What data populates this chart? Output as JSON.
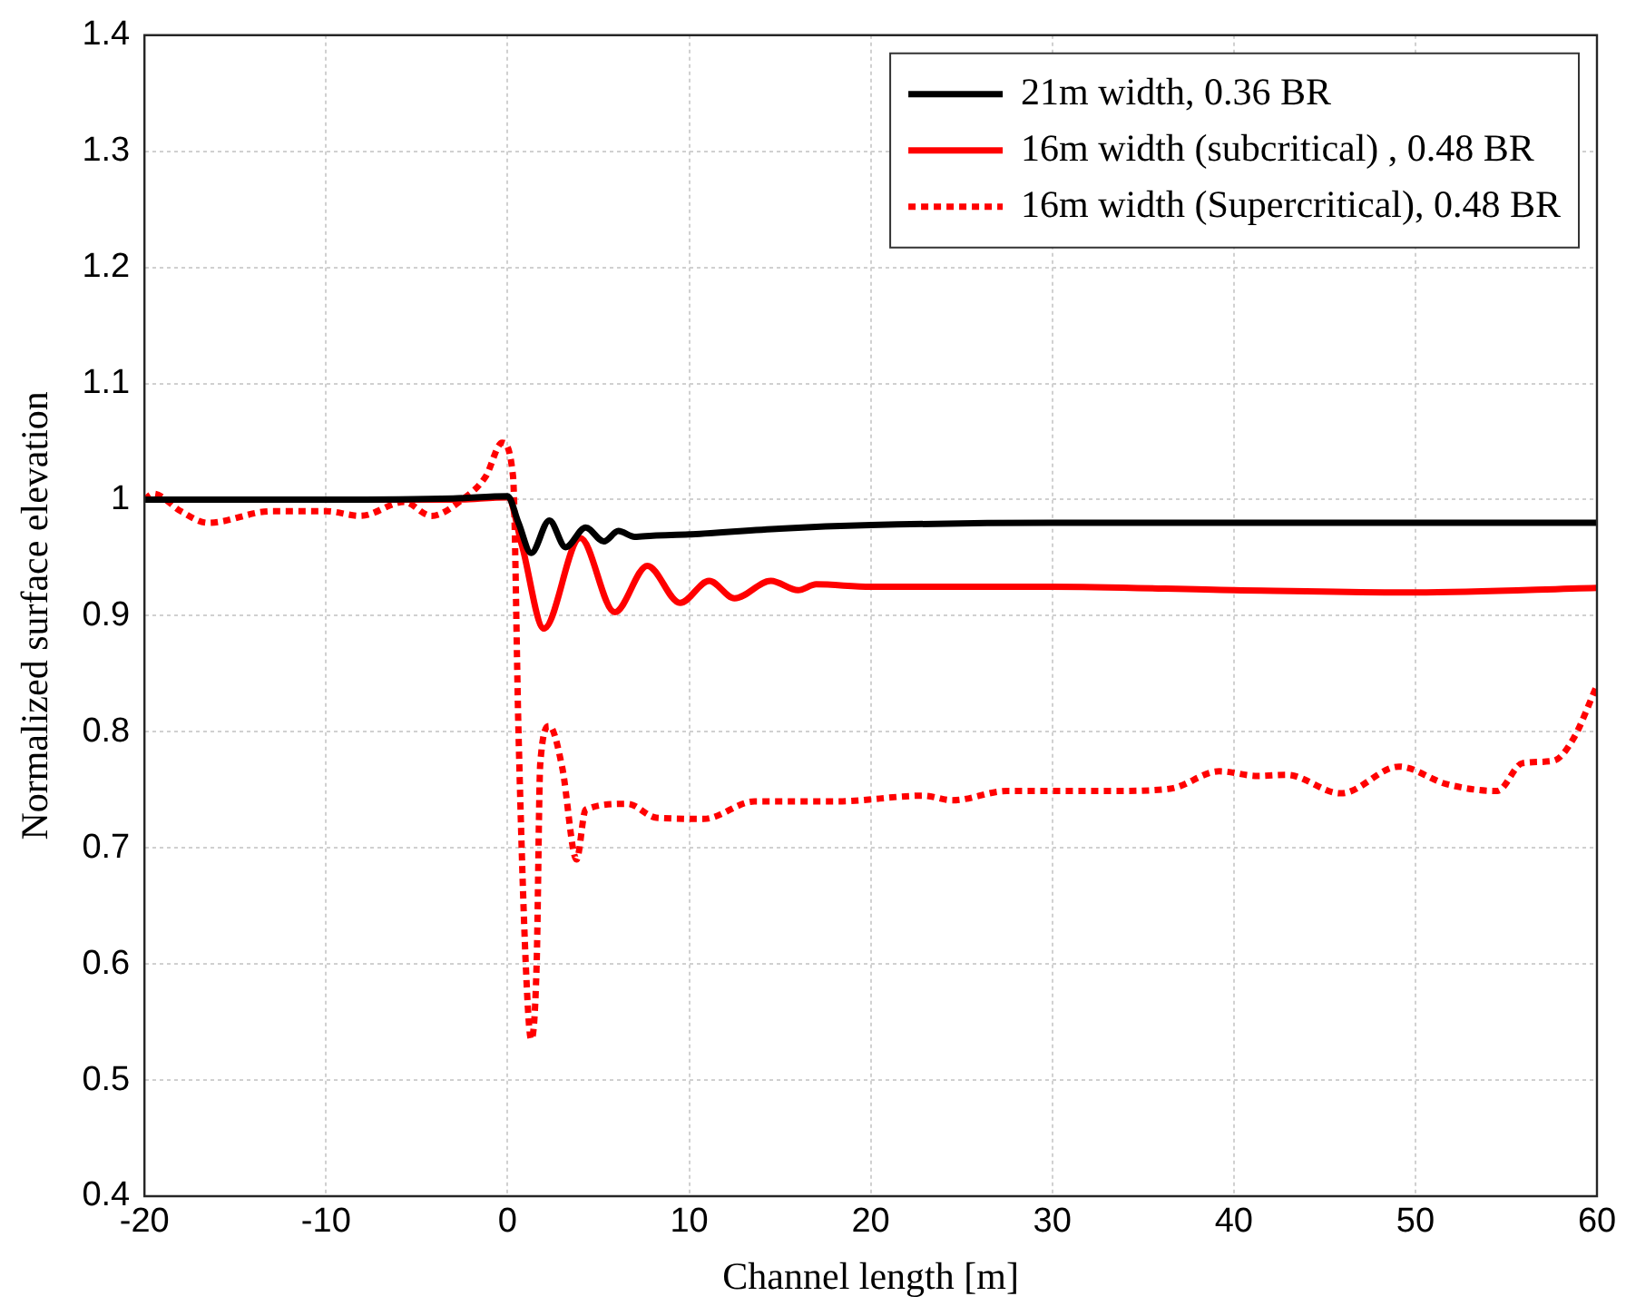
{
  "chart_data": {
    "type": "line",
    "xlabel": "Channel length [m]",
    "ylabel": "Normalized surface elevation",
    "xlim": [
      -20,
      60
    ],
    "xticks": [
      -20,
      -10,
      0,
      10,
      20,
      30,
      40,
      50,
      60
    ],
    "ylim": [
      0.4,
      1.4
    ],
    "yticks": [
      0.4,
      0.5,
      0.6,
      0.7,
      0.8,
      0.9,
      1,
      1.1,
      1.2,
      1.3,
      1.4
    ],
    "grid": true,
    "legend": "top right",
    "marker": "none",
    "series": [
      {
        "name": "21m width, 0.36 BR",
        "color": "#000000",
        "line_style": "solid",
        "x": [
          -20,
          -10,
          -3,
          0,
          0.6,
          1.3,
          2.3,
          3.2,
          4.3,
          5.3,
          6.1,
          7,
          8,
          10,
          15,
          20,
          30,
          40,
          50,
          60
        ],
        "values": [
          1,
          1,
          1.001,
          1.003,
          0.98,
          0.954,
          0.982,
          0.959,
          0.976,
          0.964,
          0.973,
          0.968,
          0.969,
          0.97,
          0.975,
          0.978,
          0.98,
          0.98,
          0.98,
          0.98
        ]
      },
      {
        "name": "16m width (subcritical) , 0.48 BR",
        "color": "#ff0000",
        "line_style": "solid",
        "x": [
          -20,
          -3,
          0,
          0.8,
          2,
          4,
          5.9,
          7.7,
          9.5,
          11.1,
          12.5,
          14.5,
          16,
          17,
          20,
          30,
          40,
          50,
          60
        ],
        "values": [
          1,
          1,
          1.002,
          0.96,
          0.889,
          0.967,
          0.903,
          0.943,
          0.911,
          0.93,
          0.915,
          0.93,
          0.922,
          0.927,
          0.925,
          0.925,
          0.922,
          0.92,
          0.924
        ]
      },
      {
        "name": "16m width (Supercritical), 0.48 BR",
        "color": "#ff0000",
        "line_style": "dotted",
        "x": [
          -20,
          -19.5,
          -18,
          -16.5,
          -13,
          -10,
          -8.1,
          -5.7,
          -4.2,
          -2.5,
          -1.2,
          -0.3,
          0.3,
          0.6,
          1,
          1.3,
          1.6,
          1.8,
          2.3,
          3,
          3.8,
          4.3,
          6.6,
          8.2,
          10.8,
          13.6,
          18.1,
          22.9,
          24.5,
          27.5,
          33.3,
          36.5,
          39.2,
          41.3,
          42.9,
          45.9,
          49.1,
          51.7,
          54.5,
          55.9,
          57.6,
          58.7,
          60
        ],
        "values": [
          1,
          1.005,
          0.99,
          0.98,
          0.99,
          0.99,
          0.986,
          0.998,
          0.986,
          1.0,
          1.02,
          1.049,
          1.02,
          0.8,
          0.6,
          0.535,
          0.6,
          0.773,
          0.805,
          0.77,
          0.69,
          0.733,
          0.738,
          0.726,
          0.725,
          0.74,
          0.74,
          0.745,
          0.741,
          0.749,
          0.749,
          0.751,
          0.766,
          0.762,
          0.763,
          0.747,
          0.77,
          0.755,
          0.749,
          0.773,
          0.775,
          0.794,
          0.84
        ]
      }
    ]
  }
}
